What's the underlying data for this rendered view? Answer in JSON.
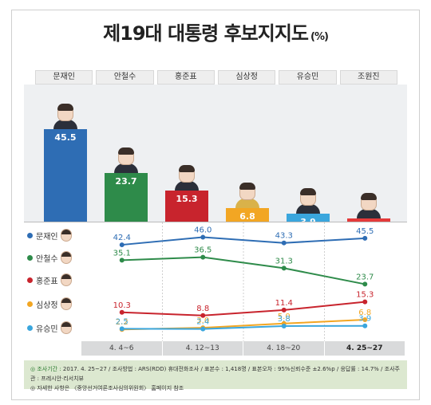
{
  "title": "제19대 대통령 후보지지도",
  "unit": "(%)",
  "candidates": [
    "문재인",
    "안철수",
    "홍준표",
    "심상정",
    "유승민",
    "조원진"
  ],
  "colors": {
    "moon": "#2e6db4",
    "ahn": "#2e8b4a",
    "hong": "#c8242d",
    "sim": "#f2a623",
    "yoo": "#3aa6dd",
    "cho": "#e43a3a",
    "gray": "#d9dadb"
  },
  "chart_data": [
    {
      "type": "bar",
      "categories": [
        "문재인",
        "안철수",
        "홍준표",
        "심상정",
        "유승민",
        "조원진"
      ],
      "values": [
        45.5,
        23.7,
        15.3,
        6.8,
        3.9,
        0.9
      ],
      "value_labels": [
        "45.5",
        "23.7",
        "15.3",
        "6.8",
        "3.9",
        ""
      ],
      "ylim": [
        0,
        50
      ]
    },
    {
      "type": "line",
      "x": [
        "4. 4~6",
        "4. 12~13",
        "4. 18~20",
        "4. 25~27"
      ],
      "series": [
        {
          "name": "문재인",
          "values": [
            42.4,
            46.0,
            43.3,
            45.5
          ],
          "labels": [
            "42.4",
            "46.0",
            "43.3",
            "45.5"
          ]
        },
        {
          "name": "안철수",
          "values": [
            35.1,
            36.5,
            31.3,
            23.7
          ],
          "labels": [
            "35.1",
            "36.5",
            "31.3",
            "23.7"
          ]
        },
        {
          "name": "홍준표",
          "values": [
            10.3,
            8.8,
            11.4,
            15.3
          ],
          "labels": [
            "10.3",
            "8.8",
            "11.4",
            "15.3"
          ]
        },
        {
          "name": "심상정",
          "values": [
            2.2,
            3.0,
            5.0,
            6.8
          ],
          "labels": [
            "2.2",
            "3.0",
            "5.0",
            "6.8"
          ]
        },
        {
          "name": "유승민",
          "values": [
            2.5,
            2.4,
            3.8,
            3.9
          ],
          "labels": [
            "2.5",
            "2.4",
            "3.8",
            "3.9"
          ]
        }
      ],
      "ylim": [
        0,
        50
      ]
    }
  ],
  "notes": {
    "line1_label": "◎ 조사기간 :",
    "line1": "2017. 4. 25~27 / 조사방법 : ARS(RDD) 휴대전화조사 / 표본수 : 1,418명 / 표본오차 : 95%신뢰수준 ±2.6%p / 응답률 : 14.7% / 조사주관 : 프레시안·리서치뷰",
    "line2": "◎ 자세한 사항은 〈중앙선거여론조사심의위원회〉 홈페이지 참조"
  }
}
